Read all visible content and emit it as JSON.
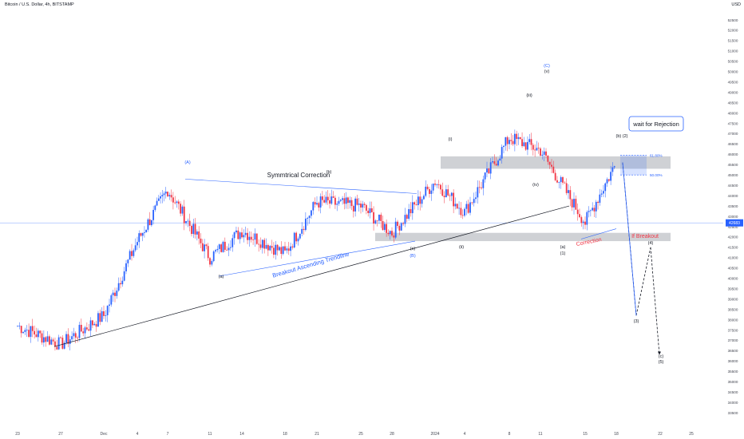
{
  "header": {
    "symbol": "Bitcoin / U.S. Dollar, 4h, BITSTAMP",
    "currency": "USD"
  },
  "chart_data": {
    "type": "candlestick",
    "ylim": [
      33000,
      53000
    ],
    "y_ticks": [
      33500,
      34000,
      34500,
      35000,
      35500,
      36000,
      36500,
      37000,
      37500,
      38000,
      38500,
      39000,
      39500,
      40000,
      40500,
      41000,
      41500,
      42000,
      42500,
      43000,
      43500,
      44000,
      44500,
      45000,
      45500,
      46000,
      46500,
      47000,
      47500,
      48000,
      48500,
      49000,
      49500,
      50000,
      50500,
      51000,
      51500,
      52000,
      52500
    ],
    "x_ticks": [
      "23",
      "27",
      "Dec",
      "4",
      "7",
      "11",
      "14",
      "18",
      "21",
      "25",
      "28",
      "2024",
      "4",
      "8",
      "11",
      "15",
      "18",
      "22",
      "25"
    ],
    "current_price_label": "42683",
    "current_price": 42683,
    "colors": {
      "up": "#2962ff",
      "down": "#f23645",
      "price_line": "#2962ff",
      "text": "#131722",
      "axis_text": "#434651"
    },
    "price_path": [
      {
        "x": "23",
        "price": 37700
      },
      {
        "x": "27",
        "price": 36800
      },
      {
        "x": "Dec",
        "price": 38200
      },
      {
        "x": "4",
        "price": 41800
      },
      {
        "x": "7",
        "price": 44300
      },
      {
        "x": "11",
        "price": 41000
      },
      {
        "x": "14",
        "price": 42300
      },
      {
        "x": "18",
        "price": 41200
      },
      {
        "x": "21",
        "price": 43700
      },
      {
        "x": "25",
        "price": 43500
      },
      {
        "x": "28",
        "price": 42200
      },
      {
        "x": "2024",
        "price": 44700
      },
      {
        "x": "4",
        "price": 43200
      },
      {
        "x": "8",
        "price": 46800
      },
      {
        "x": "11",
        "price": 46200
      },
      {
        "x": "15",
        "price": 42700
      },
      {
        "x": "18",
        "price": 45600
      }
    ],
    "annotations": {
      "wave_labels": [
        {
          "text": "(A)",
          "color": "#2962ff"
        },
        {
          "text": "(a)",
          "color": "#131722"
        },
        {
          "text": "(b)",
          "color": "#131722"
        },
        {
          "text": "(c)",
          "color": "#131722"
        },
        {
          "text": "(B)",
          "color": "#2962ff"
        },
        {
          "text": "(i)",
          "color": "#131722"
        },
        {
          "text": "(ii)",
          "color": "#131722"
        },
        {
          "text": "(iii)",
          "color": "#131722"
        },
        {
          "text": "(iv)",
          "color": "#131722"
        },
        {
          "text": "(v)",
          "color": "#131722"
        },
        {
          "text": "(C)",
          "color": "#2962ff"
        },
        {
          "text": "(a)",
          "color": "#131722"
        },
        {
          "text": "(1)",
          "color": "#131722"
        },
        {
          "text": "(b) (2)",
          "color": "#131722"
        },
        {
          "text": "(3)",
          "color": "#131722"
        },
        {
          "text": "(4)",
          "color": "#131722"
        },
        {
          "text": "(c)",
          "color": "#131722"
        },
        {
          "text": "(5)",
          "color": "#131722"
        }
      ],
      "text_labels": {
        "symmetrical": "Symmtrical Correction",
        "ascending": "Breakout Ascending Trendline",
        "correction": "Correction",
        "if_breakout": "If Breakout",
        "rejection": "wait for Rejection",
        "fib_618": "61.80%",
        "fib_50": "50.00%"
      },
      "resistance_zone": [
        45300,
        45900
      ],
      "support_zone": [
        41800,
        42200
      ],
      "fib_levels": {
        "61.80%": 45950,
        "50.00%": 45000
      },
      "projection_path": [
        45600,
        38200,
        41500,
        36300
      ]
    }
  }
}
